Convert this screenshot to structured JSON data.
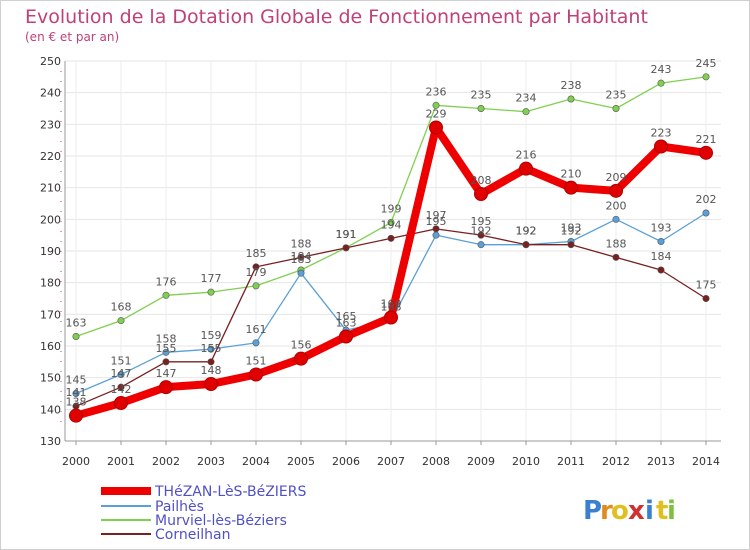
{
  "chart_data": {
    "type": "line",
    "title": "Evolution de la Dotation Globale de Fonctionnement par Habitant",
    "subtitle": "(en € et par an)",
    "x": [
      "2000",
      "2001",
      "2002",
      "2003",
      "2004",
      "2005",
      "2006",
      "2007",
      "2008",
      "2009",
      "2010",
      "2011",
      "2012",
      "2013",
      "2014"
    ],
    "ylim": [
      130,
      250
    ],
    "yticks": [
      130,
      140,
      150,
      160,
      170,
      180,
      190,
      200,
      210,
      220,
      230,
      240,
      250
    ],
    "grid": true,
    "legend_position": "bottom-left",
    "series": [
      {
        "name": "THéZAN-LèS-BéZIERS",
        "color": "#ee0000",
        "values": [
          138,
          142,
          147,
          148,
          151,
          156,
          163,
          169,
          229,
          208,
          216,
          210,
          209,
          223,
          221
        ]
      },
      {
        "name": "Pailhès",
        "color": "#5aa0d8",
        "values": [
          145,
          151,
          158,
          159,
          161,
          183,
          165,
          168,
          195,
          192,
          192,
          193,
          200,
          193,
          202
        ]
      },
      {
        "name": "Murviel-lès-Béziers",
        "color": "#80d050",
        "values": [
          163,
          168,
          176,
          177,
          179,
          184,
          191,
          199,
          236,
          235,
          234,
          238,
          235,
          243,
          245
        ]
      },
      {
        "name": "Corneilhan",
        "color": "#7a2020",
        "values": [
          141,
          147,
          155,
          155,
          185,
          188,
          191,
          194,
          197,
          195,
          192,
          192,
          188,
          184,
          175
        ]
      }
    ],
    "labels": [
      {
        "series": 0,
        "text": [
          "138",
          "142",
          "147",
          "148",
          "151",
          "156",
          "163",
          "169",
          "229",
          "208",
          "216",
          "210",
          "209",
          "223",
          "221"
        ]
      },
      {
        "series": 1,
        "text": [
          "145",
          "151",
          "158",
          "159",
          "161",
          "183",
          "165",
          "168",
          "195",
          "192",
          "192",
          "193",
          "200",
          "193",
          "202"
        ]
      },
      {
        "series": 2,
        "text": [
          "163",
          "168",
          "176",
          "177",
          "179",
          "184",
          "191",
          "199",
          "236",
          "235",
          "234",
          "238",
          "235",
          "243",
          "245"
        ]
      },
      {
        "series": 3,
        "text": [
          "141",
          "147",
          "155",
          "155",
          "185",
          "188",
          "191",
          "194",
          "197",
          "195",
          "192",
          "192",
          "188",
          "184",
          "175"
        ]
      }
    ]
  },
  "brand": {
    "letters": [
      "P",
      "r",
      "o",
      "x",
      "i",
      "t",
      "i"
    ],
    "colors": [
      "#3a7fd0",
      "#e08a20",
      "#e0c020",
      "#d03030",
      "#3a7fd0",
      "#e0c020",
      "#80c040"
    ]
  }
}
